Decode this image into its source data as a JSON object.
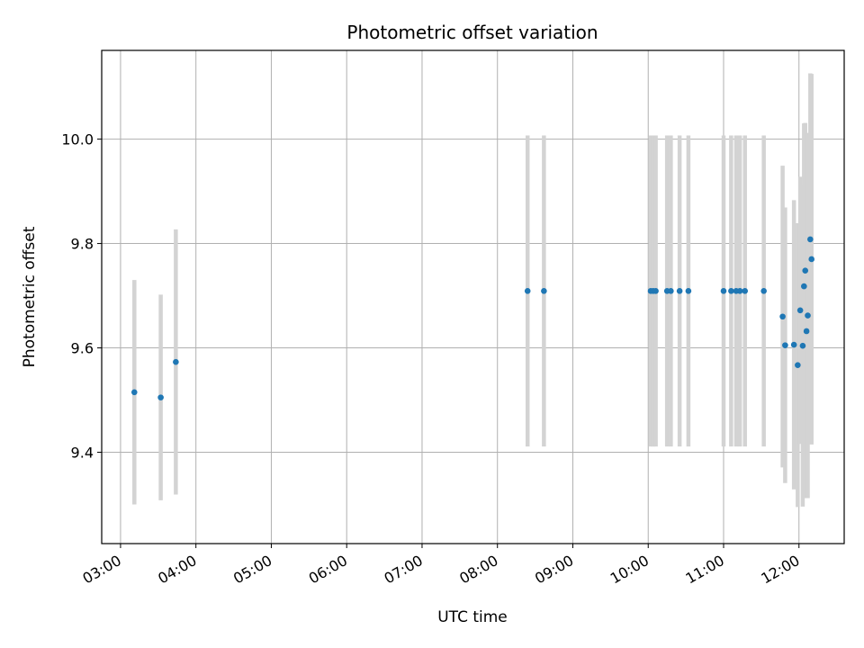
{
  "chart_data": {
    "type": "scatter",
    "title": "Photometric offset variation",
    "xlabel": "UTC time",
    "ylabel": "Photometric offset",
    "x_axis_kind": "time",
    "xlim": [
      "02:45",
      "12:36"
    ],
    "ylim": [
      9.225,
      10.17
    ],
    "x_ticks": [
      "03:00",
      "04:00",
      "05:00",
      "06:00",
      "07:00",
      "08:00",
      "09:00",
      "10:00",
      "11:00",
      "12:00"
    ],
    "y_ticks": [
      9.4,
      9.6,
      9.8,
      10.0
    ],
    "y_tick_labels": [
      "9.4",
      "9.6",
      "9.8",
      "10.0"
    ],
    "grid": true,
    "point_color": "#1f77b4",
    "errorbar_color": "#d3d3d3",
    "points": [
      {
        "t": "03:11",
        "y": 9.515,
        "err": 0.215
      },
      {
        "t": "03:32",
        "y": 9.505,
        "err": 0.197
      },
      {
        "t": "03:44",
        "y": 9.573,
        "err": 0.254
      },
      {
        "t": "08:24",
        "y": 9.709,
        "err": 0.298
      },
      {
        "t": "08:37",
        "y": 9.709,
        "err": 0.298
      },
      {
        "t": "10:02",
        "y": 9.709,
        "err": 0.298
      },
      {
        "t": "10:04",
        "y": 9.709,
        "err": 0.298
      },
      {
        "t": "10:06",
        "y": 9.709,
        "err": 0.298
      },
      {
        "t": "10:15",
        "y": 9.709,
        "err": 0.298
      },
      {
        "t": "10:18",
        "y": 9.709,
        "err": 0.298
      },
      {
        "t": "10:25",
        "y": 9.709,
        "err": 0.298
      },
      {
        "t": "10:32",
        "y": 9.709,
        "err": 0.298
      },
      {
        "t": "11:00",
        "y": 9.709,
        "err": 0.298
      },
      {
        "t": "11:06",
        "y": 9.709,
        "err": 0.298
      },
      {
        "t": "11:10",
        "y": 9.709,
        "err": 0.298
      },
      {
        "t": "11:13",
        "y": 9.709,
        "err": 0.298
      },
      {
        "t": "11:17",
        "y": 9.709,
        "err": 0.298
      },
      {
        "t": "11:32",
        "y": 9.709,
        "err": 0.298
      },
      {
        "t": "11:47",
        "y": 9.66,
        "err": 0.289
      },
      {
        "t": "11:49",
        "y": 9.605,
        "err": 0.264
      },
      {
        "t": "11:56",
        "y": 9.606,
        "err": 0.277
      },
      {
        "t": "11:59",
        "y": 9.567,
        "err": 0.272
      },
      {
        "t": "12:01",
        "y": 9.672,
        "err": 0.256
      },
      {
        "t": "12:03",
        "y": 9.604,
        "err": 0.308
      },
      {
        "t": "12:04",
        "y": 9.718,
        "err": 0.312
      },
      {
        "t": "12:05",
        "y": 9.748,
        "err": 0.283
      },
      {
        "t": "12:06",
        "y": 9.632,
        "err": 0.32
      },
      {
        "t": "12:07",
        "y": 9.662,
        "err": 0.35
      },
      {
        "t": "12:09",
        "y": 9.808,
        "err": 0.318
      },
      {
        "t": "12:10",
        "y": 9.77,
        "err": 0.355
      }
    ]
  }
}
